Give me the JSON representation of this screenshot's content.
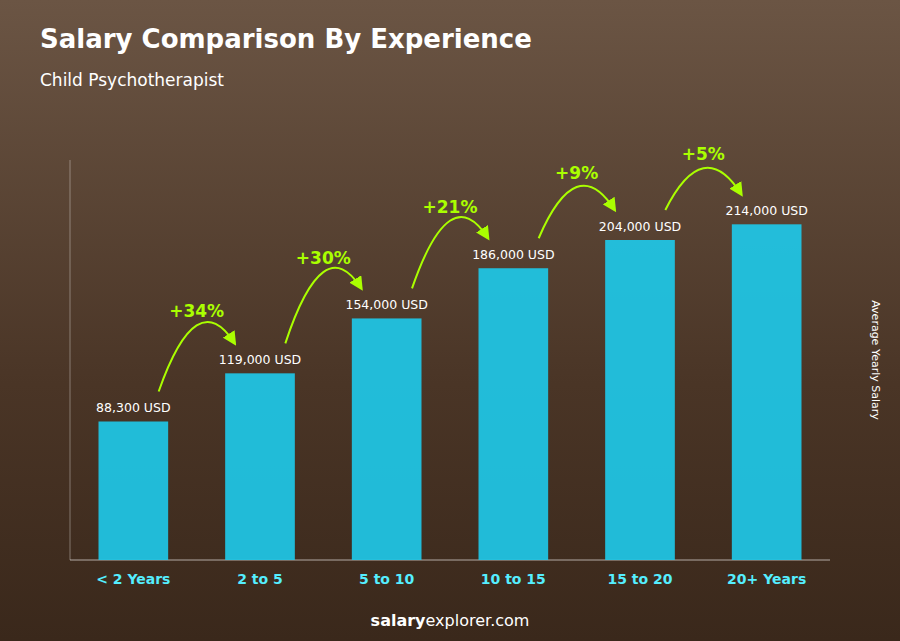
{
  "chart_data": {
    "type": "bar",
    "title": "Salary Comparison By Experience",
    "subtitle": "Child Psychotherapist",
    "ylabel": "Average Yearly Salary",
    "categories": [
      "< 2 Years",
      "2 to 5",
      "5 to 10",
      "10 to 15",
      "15 to 20",
      "20+ Years"
    ],
    "values": [
      88300,
      119000,
      154000,
      186000,
      204000,
      214000
    ],
    "value_labels": [
      "88,300 USD",
      "119,000 USD",
      "154,000 USD",
      "186,000 USD",
      "204,000 USD",
      "214,000 USD"
    ],
    "data_labels": true,
    "annotations": [
      "+34%",
      "+30%",
      "+21%",
      "+9%",
      "+5%"
    ],
    "watermark": {
      "bold": "salary",
      "rest": "explorer.com"
    },
    "color": "#1ec8e8",
    "ylim": [
      0,
      255000
    ],
    "tick_labels": "x",
    "grid": false
  }
}
